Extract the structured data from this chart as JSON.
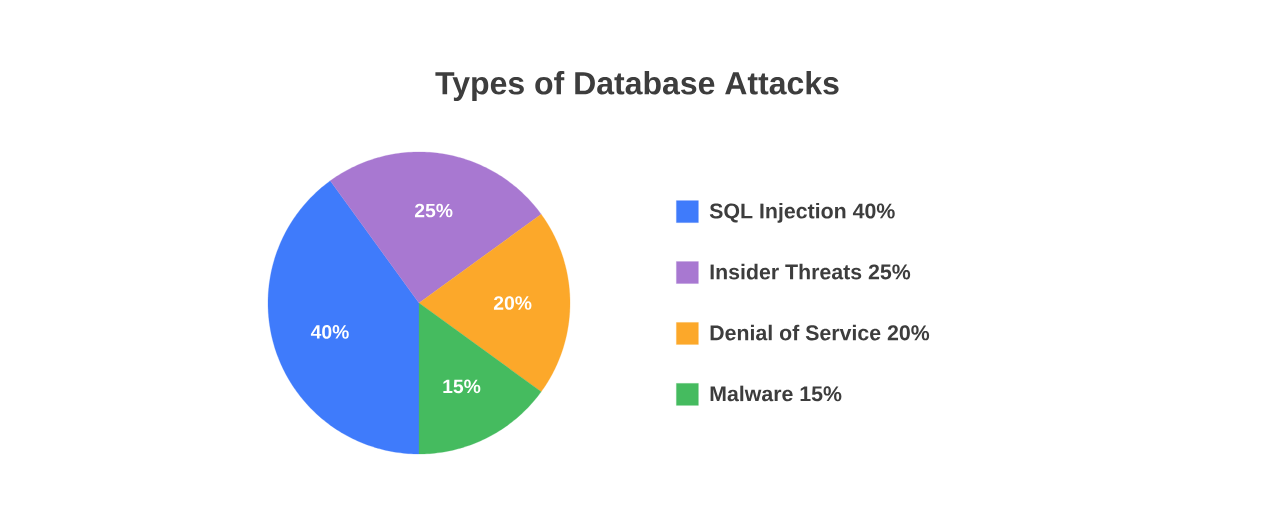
{
  "chart_data": {
    "type": "pie",
    "title": "Types of Database Attacks",
    "categories": [
      "SQL Injection 40%",
      "Insider Threats 25%",
      "Denial of Service 20%",
      "Malware 15%"
    ],
    "values": [
      40,
      25,
      20,
      15
    ],
    "colors": [
      "#3f7bfb",
      "#a878d1",
      "#fca82a",
      "#45bb5f"
    ],
    "value_labels": [
      "40%",
      "25%",
      "20%",
      "15%"
    ],
    "legend": "right"
  }
}
